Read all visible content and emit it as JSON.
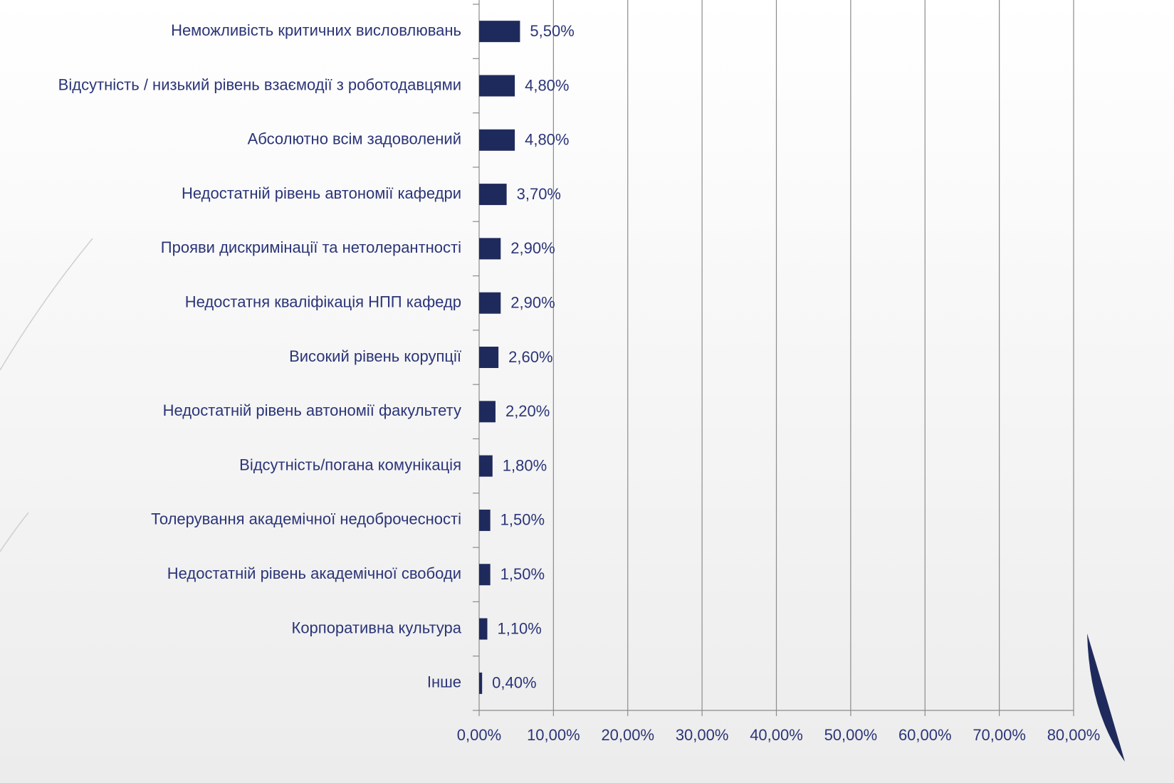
{
  "chart_data": {
    "type": "hbar",
    "categories": [
      "Неможливість критичних висловлювань",
      "Відсутність / низький рівень взаємодії з роботодавцями",
      "Абсолютно всім задоволений",
      "Недостатній рівень автономії кафедри",
      "Прояви дискримінації та нетолерантності",
      "Недостатня кваліфікація НПП кафедр",
      "Високий рівень корупції",
      "Недостатній рівень автономії факультету",
      "Відсутність/погана комунікація",
      "Толерування академічної недоброчесності",
      "Недостатній рівень академічної свободи",
      "Корпоративна культура",
      "Інше"
    ],
    "values": [
      5.5,
      4.8,
      4.8,
      3.7,
      2.9,
      2.9,
      2.6,
      2.2,
      1.8,
      1.5,
      1.5,
      1.1,
      0.4
    ],
    "value_labels": [
      "5,50%",
      "4,80%",
      "4,80%",
      "3,70%",
      "2,90%",
      "2,90%",
      "2,60%",
      "2,20%",
      "1,80%",
      "1,50%",
      "1,50%",
      "1,10%",
      "0,40%"
    ],
    "color": "#1f2a5c",
    "xlim": [
      0,
      80
    ],
    "xticks": [
      {
        "value": 0,
        "label": "0,00%"
      },
      {
        "value": 10,
        "label": "10,00%"
      },
      {
        "value": 20,
        "label": "20,00%"
      },
      {
        "value": 30,
        "label": "30,00%"
      },
      {
        "value": 40,
        "label": "40,00%"
      },
      {
        "value": 50,
        "label": "50,00%"
      },
      {
        "value": 60,
        "label": "60,00%"
      },
      {
        "value": 70,
        "label": "70,00%"
      },
      {
        "value": 80,
        "label": "80,00%"
      }
    ],
    "grid": true
  }
}
